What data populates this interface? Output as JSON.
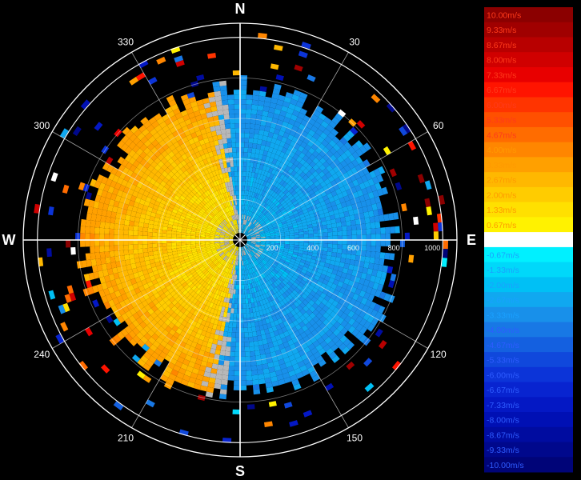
{
  "chart_data": {
    "type": "heatmap",
    "subtype": "polar-ppi-radial-velocity",
    "center_value": "0.00m/s",
    "cardinals": [
      {
        "label": "N",
        "bearing": 0
      },
      {
        "label": "E",
        "bearing": 90
      },
      {
        "label": "S",
        "bearing": 180
      },
      {
        "label": "W",
        "bearing": 270
      }
    ],
    "bearing_labels": [
      {
        "label": "30",
        "bearing": 30
      },
      {
        "label": "60",
        "bearing": 60
      },
      {
        "label": "120",
        "bearing": 120
      },
      {
        "label": "150",
        "bearing": 150
      },
      {
        "label": "210",
        "bearing": 210
      },
      {
        "label": "240",
        "bearing": 240
      },
      {
        "label": "300",
        "bearing": 300
      },
      {
        "label": "330",
        "bearing": 330
      }
    ],
    "range_rings": [
      200,
      400,
      600,
      800,
      1000
    ],
    "range_labels": [
      {
        "label": "200",
        "range": 200
      },
      {
        "label": "400",
        "range": 400
      },
      {
        "label": "600",
        "range": 600
      },
      {
        "label": "800",
        "range": 800
      },
      {
        "label": "1000",
        "range": 1000
      }
    ],
    "max_range": 1070,
    "field": {
      "positive_sector_bearings": [
        190,
        350
      ],
      "negative_sector_bearings": [
        350,
        190
      ],
      "echo_edge_range": 760,
      "sparse_clutter_to_range": 1020
    },
    "scale": [
      {
        "label": "10.00m/s",
        "value": 10.0,
        "color": "#8b0000"
      },
      {
        "label": "9.33m/s",
        "value": 9.33,
        "color": "#a00000"
      },
      {
        "label": "8.67m/s",
        "value": 8.67,
        "color": "#b80000"
      },
      {
        "label": "8.00m/s",
        "value": 8.0,
        "color": "#d00000"
      },
      {
        "label": "7.33m/s",
        "value": 7.33,
        "color": "#e80000"
      },
      {
        "label": "6.67m/s",
        "value": 6.67,
        "color": "#ff1400"
      },
      {
        "label": "6.00m/s",
        "value": 6.0,
        "color": "#ff3400"
      },
      {
        "label": "5.33m/s",
        "value": 5.33,
        "color": "#ff5000"
      },
      {
        "label": "4.67m/s",
        "value": 4.67,
        "color": "#ff6c00"
      },
      {
        "label": "4.00m/s",
        "value": 4.0,
        "color": "#ff8600"
      },
      {
        "label": "3.33m/s",
        "value": 3.33,
        "color": "#ffa000"
      },
      {
        "label": "2.67m/s",
        "value": 2.67,
        "color": "#ffb800"
      },
      {
        "label": "2.00m/s",
        "value": 2.0,
        "color": "#ffcc00"
      },
      {
        "label": "1.33m/s",
        "value": 1.33,
        "color": "#ffe000"
      },
      {
        "label": "0.67m/s",
        "value": 0.67,
        "color": "#fff200"
      },
      {
        "label": "0.00m/s",
        "value": 0.0,
        "color": "#ffffff"
      },
      {
        "label": "-0.67m/s",
        "value": -0.67,
        "color": "#00f0ff"
      },
      {
        "label": "-1.33m/s",
        "value": -1.33,
        "color": "#00d8fa"
      },
      {
        "label": "-2.00m/s",
        "value": -2.0,
        "color": "#00c0f5"
      },
      {
        "label": "-2.67m/s",
        "value": -2.67,
        "color": "#10a8f0"
      },
      {
        "label": "-3.33m/s",
        "value": -3.33,
        "color": "#1890ea"
      },
      {
        "label": "-4.00m/s",
        "value": -4.0,
        "color": "#1878e5"
      },
      {
        "label": "-4.67m/s",
        "value": -4.67,
        "color": "#1460e0"
      },
      {
        "label": "-5.33m/s",
        "value": -5.33,
        "color": "#1048dc"
      },
      {
        "label": "-6.00m/s",
        "value": -6.0,
        "color": "#0c34d8"
      },
      {
        "label": "-6.67m/s",
        "value": -6.67,
        "color": "#0824d0"
      },
      {
        "label": "-7.33m/s",
        "value": -7.33,
        "color": "#0418c4"
      },
      {
        "label": "-8.00m/s",
        "value": -8.0,
        "color": "#0010b4"
      },
      {
        "label": "-8.67m/s",
        "value": -8.67,
        "color": "#000ca0"
      },
      {
        "label": "-9.33m/s",
        "value": -9.33,
        "color": "#00088c"
      },
      {
        "label": "-10.00m/s",
        "value": -10.0,
        "color": "#000478"
      }
    ]
  }
}
